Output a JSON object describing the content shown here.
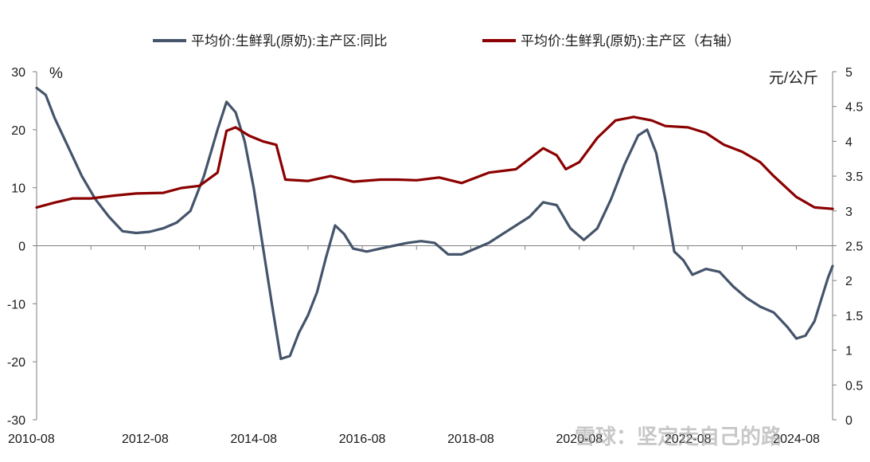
{
  "legend": {
    "series1": "平均价:生鲜乳(原奶):主产区:同比",
    "series2": "平均价:生鲜乳(原奶):主产区（右轴）"
  },
  "watermark": "雪球：坚定走自己的路",
  "chart_data": {
    "type": "line",
    "title": "",
    "left_axis": {
      "unit": "%",
      "min": -30,
      "max": 30,
      "ticks": [
        30,
        20,
        10,
        0,
        -10,
        -20,
        -30
      ]
    },
    "right_axis": {
      "unit": "元/公斤",
      "min": 0,
      "max": 5,
      "ticks": [
        "5",
        "4.5",
        "4",
        "3.5",
        "3",
        "2.5",
        "2",
        "1.5",
        "1",
        "0.5",
        "0"
      ]
    },
    "x_axis": {
      "ticks": [
        "2010-08",
        "2012-08",
        "2014-08",
        "2016-08",
        "2018-08",
        "2020-08",
        "2022-08",
        "2024-08"
      ]
    },
    "x_range": [
      "2010-08",
      "2025-04"
    ],
    "legend_position": "top",
    "grid": false,
    "series": [
      {
        "name": "平均价:生鲜乳(原奶):主产区:同比",
        "axis": "left",
        "color": "#44546a",
        "points": [
          [
            "2010-08",
            27.2
          ],
          [
            "2010-10",
            26
          ],
          [
            "2010-12",
            22
          ],
          [
            "2011-03",
            17
          ],
          [
            "2011-06",
            12
          ],
          [
            "2011-09",
            8
          ],
          [
            "2011-12",
            5
          ],
          [
            "2012-03",
            2.5
          ],
          [
            "2012-06",
            2.2
          ],
          [
            "2012-09",
            2.4
          ],
          [
            "2012-12",
            3
          ],
          [
            "2013-03",
            4
          ],
          [
            "2013-06",
            6
          ],
          [
            "2013-09",
            12
          ],
          [
            "2013-12",
            20
          ],
          [
            "2014-02",
            24.8
          ],
          [
            "2014-04",
            23
          ],
          [
            "2014-06",
            18
          ],
          [
            "2014-08",
            10
          ],
          [
            "2014-10",
            0
          ],
          [
            "2014-12",
            -10
          ],
          [
            "2015-02",
            -19.5
          ],
          [
            "2015-04",
            -19
          ],
          [
            "2015-06",
            -15
          ],
          [
            "2015-08",
            -12
          ],
          [
            "2015-10",
            -8
          ],
          [
            "2015-12",
            -2
          ],
          [
            "2016-02",
            3.5
          ],
          [
            "2016-04",
            2
          ],
          [
            "2016-06",
            -0.5
          ],
          [
            "2016-09",
            -1
          ],
          [
            "2016-12",
            -0.5
          ],
          [
            "2017-03",
            0
          ],
          [
            "2017-06",
            0.5
          ],
          [
            "2017-09",
            0.8
          ],
          [
            "2017-12",
            0.5
          ],
          [
            "2018-03",
            -1.5
          ],
          [
            "2018-06",
            -1.5
          ],
          [
            "2018-09",
            -0.5
          ],
          [
            "2018-12",
            0.5
          ],
          [
            "2019-03",
            2
          ],
          [
            "2019-06",
            3.5
          ],
          [
            "2019-09",
            5
          ],
          [
            "2019-12",
            7.5
          ],
          [
            "2020-03",
            7
          ],
          [
            "2020-06",
            3
          ],
          [
            "2020-09",
            1
          ],
          [
            "2020-12",
            3
          ],
          [
            "2021-03",
            8
          ],
          [
            "2021-06",
            14
          ],
          [
            "2021-09",
            19
          ],
          [
            "2021-11",
            20
          ],
          [
            "2022-01",
            16
          ],
          [
            "2022-03",
            8
          ],
          [
            "2022-05",
            -1
          ],
          [
            "2022-07",
            -2.5
          ],
          [
            "2022-09",
            -5
          ],
          [
            "2022-12",
            -4
          ],
          [
            "2023-03",
            -4.5
          ],
          [
            "2023-06",
            -7
          ],
          [
            "2023-09",
            -9
          ],
          [
            "2023-12",
            -10.5
          ],
          [
            "2024-03",
            -11.5
          ],
          [
            "2024-06",
            -14
          ],
          [
            "2024-08",
            -16
          ],
          [
            "2024-10",
            -15.5
          ],
          [
            "2024-12",
            -13
          ],
          [
            "2025-02",
            -8
          ],
          [
            "2025-03",
            -5.5
          ],
          [
            "2025-04",
            -3.5
          ]
        ]
      },
      {
        "name": "平均价:生鲜乳(原奶):主产区（右轴）",
        "axis": "right",
        "color": "#8b0000",
        "points": [
          [
            "2010-08",
            3.05
          ],
          [
            "2010-12",
            3.12
          ],
          [
            "2011-04",
            3.18
          ],
          [
            "2011-08",
            3.18
          ],
          [
            "2012-01",
            3.22
          ],
          [
            "2012-06",
            3.25
          ],
          [
            "2012-12",
            3.26
          ],
          [
            "2013-04",
            3.33
          ],
          [
            "2013-08",
            3.36
          ],
          [
            "2013-12",
            3.55
          ],
          [
            "2014-02",
            4.15
          ],
          [
            "2014-04",
            4.2
          ],
          [
            "2014-07",
            4.08
          ],
          [
            "2014-10",
            4.0
          ],
          [
            "2015-01",
            3.95
          ],
          [
            "2015-03",
            3.45
          ],
          [
            "2015-08",
            3.43
          ],
          [
            "2016-01",
            3.5
          ],
          [
            "2016-06",
            3.42
          ],
          [
            "2016-12",
            3.45
          ],
          [
            "2017-04",
            3.45
          ],
          [
            "2017-08",
            3.44
          ],
          [
            "2018-01",
            3.48
          ],
          [
            "2018-06",
            3.4
          ],
          [
            "2018-12",
            3.55
          ],
          [
            "2019-06",
            3.6
          ],
          [
            "2019-12",
            3.9
          ],
          [
            "2020-03",
            3.8
          ],
          [
            "2020-05",
            3.6
          ],
          [
            "2020-08",
            3.7
          ],
          [
            "2020-12",
            4.05
          ],
          [
            "2021-04",
            4.3
          ],
          [
            "2021-08",
            4.35
          ],
          [
            "2021-12",
            4.3
          ],
          [
            "2022-03",
            4.22
          ],
          [
            "2022-08",
            4.2
          ],
          [
            "2022-12",
            4.12
          ],
          [
            "2023-04",
            3.95
          ],
          [
            "2023-08",
            3.85
          ],
          [
            "2023-12",
            3.7
          ],
          [
            "2024-03",
            3.5
          ],
          [
            "2024-08",
            3.2
          ],
          [
            "2024-12",
            3.05
          ],
          [
            "2025-04",
            3.03
          ]
        ]
      }
    ]
  }
}
